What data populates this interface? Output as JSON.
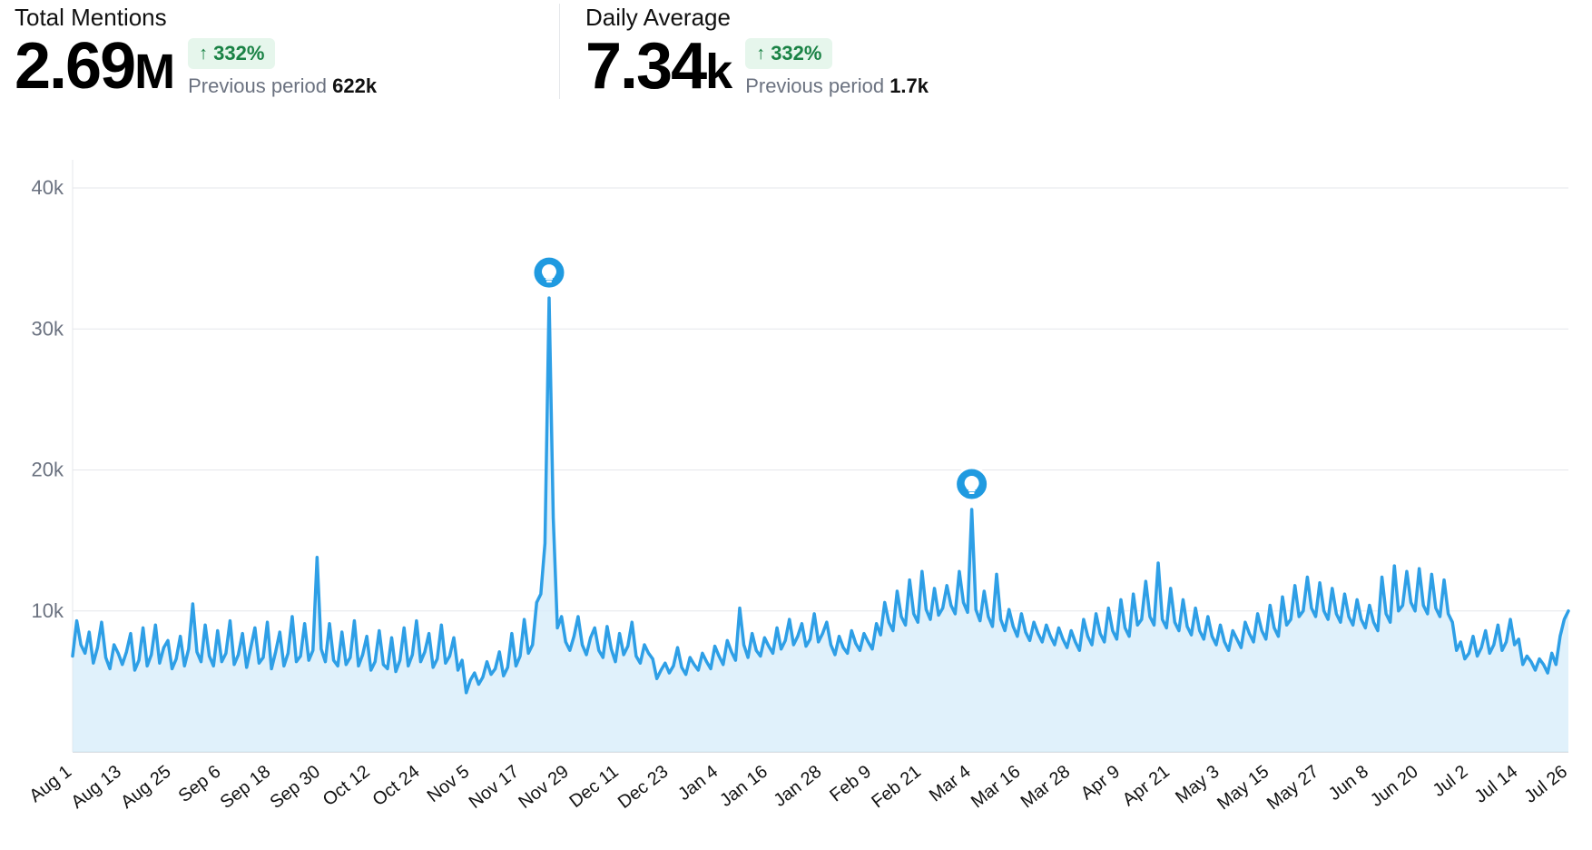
{
  "stats": [
    {
      "label": "Total Mentions",
      "value_main": "2.69",
      "value_unit": "M",
      "change_direction": "up",
      "change_text": "332%",
      "previous_label": "Previous period",
      "previous_value": "622k"
    },
    {
      "label": "Daily Average",
      "value_main": "7.34",
      "value_unit": "k",
      "change_direction": "up",
      "change_text": "332%",
      "previous_label": "Previous period",
      "previous_value": "1.7k"
    }
  ],
  "badge_bg": "#e6f6ec",
  "badge_fg": "#1a8245",
  "chart": {
    "type": "area-line",
    "line_color": "#2e9fe6",
    "area_fill": "#d6ecfa",
    "area_opacity": 0.75,
    "line_width": 3.5,
    "background_color": "#ffffff",
    "grid_color": "#e5e7eb",
    "baseline_color": "#d1d5db",
    "yaxis": {
      "min": 0,
      "max": 42000,
      "ticks": [
        10000,
        20000,
        30000,
        40000
      ],
      "tick_labels": [
        "10k",
        "20k",
        "30k",
        "40k"
      ],
      "label_fontsize": 22,
      "label_color": "#6b7280"
    },
    "xaxis": {
      "label_fontsize": 20,
      "label_color": "#111111",
      "rotation_deg": -38,
      "ticks": [
        "Aug 1",
        "Aug 13",
        "Aug 25",
        "Sep 6",
        "Sep 18",
        "Sep 30",
        "Oct 12",
        "Oct 24",
        "Nov 5",
        "Nov 17",
        "Nov 29",
        "Dec 11",
        "Dec 23",
        "Jan 4",
        "Jan 16",
        "Jan 28",
        "Feb 9",
        "Feb 21",
        "Mar 4",
        "Mar 16",
        "Mar 28",
        "Apr 9",
        "Apr 21",
        "May 3",
        "May 15",
        "May 27",
        "Jun 8",
        "Jun 20",
        "Jul 2",
        "Jul 14",
        "Jul 26"
      ]
    },
    "markers": [
      {
        "index": 115,
        "type": "insight",
        "icon": "lightbulb",
        "color": "#1f9ae0",
        "radius": 18
      },
      {
        "index": 217,
        "type": "insight",
        "icon": "lightbulb",
        "color": "#1f9ae0",
        "radius": 18
      }
    ],
    "values": [
      6800,
      9300,
      7600,
      7000,
      8500,
      6300,
      7400,
      9200,
      6700,
      5900,
      7600,
      7000,
      6200,
      7100,
      8400,
      5800,
      6500,
      8800,
      6100,
      6900,
      9000,
      6300,
      7400,
      7900,
      5900,
      6600,
      8200,
      6100,
      7300,
      10500,
      7100,
      6400,
      9000,
      6800,
      6100,
      8600,
      6400,
      7000,
      9300,
      6200,
      6900,
      8400,
      6000,
      7400,
      8800,
      6300,
      6700,
      9200,
      5900,
      7100,
      8500,
      6100,
      7000,
      9600,
      6400,
      6800,
      9100,
      6500,
      7200,
      13800,
      7300,
      6400,
      9100,
      6500,
      6100,
      8500,
      6200,
      6700,
      9300,
      6100,
      6900,
      8200,
      5800,
      6400,
      8600,
      6200,
      5900,
      8100,
      5700,
      6500,
      8800,
      6100,
      6900,
      9300,
      6400,
      7100,
      8400,
      6000,
      6600,
      9000,
      6300,
      6800,
      8100,
      5800,
      6500,
      4200,
      5100,
      5600,
      4800,
      5300,
      6400,
      5500,
      5900,
      7100,
      5400,
      6000,
      8400,
      6100,
      6800,
      9400,
      7000,
      7600,
      10600,
      11200,
      14800,
      32200,
      16600,
      8800,
      9600,
      7800,
      7200,
      8200,
      9600,
      7600,
      6900,
      8100,
      8800,
      7200,
      6700,
      8900,
      7300,
      6400,
      8400,
      6900,
      7500,
      9200,
      6800,
      6300,
      7600,
      7000,
      6600,
      5200,
      5800,
      6300,
      5600,
      6100,
      7400,
      6000,
      5500,
      6700,
      6200,
      5800,
      7000,
      6400,
      5900,
      7500,
      6800,
      6200,
      7900,
      7100,
      6500,
      10200,
      7600,
      6700,
      8400,
      7200,
      6800,
      8100,
      7500,
      7000,
      8800,
      7300,
      7900,
      9400,
      7600,
      8200,
      9100,
      7500,
      8000,
      9800,
      7800,
      8400,
      9200,
      7600,
      6900,
      8200,
      7400,
      7000,
      8600,
      7700,
      7200,
      8400,
      7800,
      7300,
      9100,
      8300,
      10600,
      9200,
      8600,
      11400,
      9600,
      9000,
      12200,
      9800,
      9200,
      12800,
      10100,
      9400,
      11600,
      9700,
      10200,
      11800,
      10400,
      9800,
      12800,
      10600,
      9900,
      17200,
      10100,
      9300,
      11400,
      9600,
      8900,
      12600,
      9400,
      8600,
      10100,
      8900,
      8200,
      9800,
      8500,
      7900,
      9200,
      8400,
      7800,
      9000,
      8200,
      7600,
      8800,
      8000,
      7400,
      8600,
      7800,
      7200,
      9400,
      8200,
      7600,
      9800,
      8400,
      7800,
      10200,
      8600,
      8000,
      10800,
      8800,
      8200,
      11200,
      9000,
      9400,
      12100,
      9600,
      9000,
      13400,
      9400,
      8800,
      11600,
      9200,
      8600,
      10800,
      8900,
      8300,
      10200,
      8600,
      8000,
      9600,
      8200,
      7600,
      9000,
      7800,
      7200,
      8600,
      8000,
      7400,
      9200,
      8400,
      7800,
      9800,
      8600,
      8000,
      10400,
      8800,
      8200,
      11000,
      9000,
      9400,
      11800,
      9600,
      10000,
      12400,
      10200,
      9600,
      12000,
      10000,
      9400,
      11600,
      9800,
      9200,
      11200,
      9600,
      9000,
      10800,
      9400,
      8800,
      10400,
      9200,
      8600,
      12400,
      9800,
      9200,
      13200,
      10000,
      10400,
      12800,
      10600,
      10000,
      13000,
      10400,
      9800,
      12600,
      10200,
      9600,
      12200,
      9800,
      9200,
      7200,
      7800,
      6600,
      7000,
      8200,
      6800,
      7400,
      8600,
      7000,
      7600,
      9000,
      7200,
      7800,
      9400,
      7600,
      8000,
      6200,
      6800,
      6400,
      5800,
      6600,
      6200,
      5600,
      7000,
      6200,
      8200,
      9400,
      10000
    ]
  }
}
